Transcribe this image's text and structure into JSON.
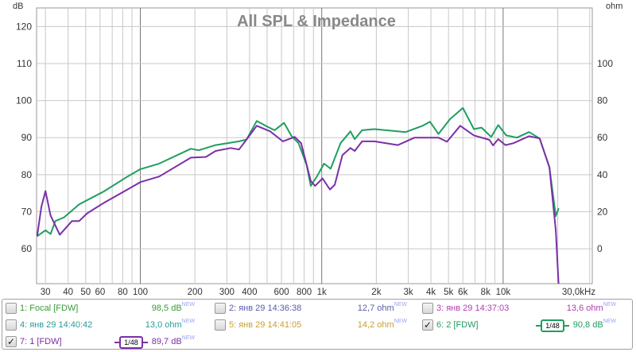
{
  "chart_data": {
    "type": "line",
    "title": "All SPL & Impedance",
    "ylabel": "dB",
    "ylabel_right": "ohm",
    "x_scale": "log",
    "xlim": [
      26.8,
      31000
    ],
    "ylim": [
      50.6,
      125
    ],
    "ylim_right": [
      -19,
      130
    ],
    "grid": true,
    "x_ticks": [
      "30",
      "40",
      "50",
      "60",
      "80",
      "100",
      "200",
      "300",
      "400",
      "600",
      "800",
      "1k",
      "2k",
      "3k",
      "4k",
      "5k",
      "6k",
      "8k",
      "10k",
      "30,0kHz"
    ],
    "x_tick_values": [
      30,
      40,
      50,
      60,
      80,
      100,
      200,
      300,
      400,
      600,
      800,
      1000,
      2000,
      3000,
      4000,
      5000,
      6000,
      8000,
      10000,
      30000
    ],
    "y_ticks": [
      60,
      70,
      80,
      90,
      100,
      110,
      120
    ],
    "y_ticks_right": [
      0,
      20,
      40,
      60,
      80,
      100
    ],
    "series": [
      {
        "name": "6: 2 [FDW]",
        "color": "#1f9e5f",
        "points": [
          [
            27,
            63.4
          ],
          [
            30,
            65
          ],
          [
            32,
            64
          ],
          [
            34,
            67.5
          ],
          [
            38,
            68.5
          ],
          [
            46,
            72
          ],
          [
            63,
            75.5
          ],
          [
            85,
            79.5
          ],
          [
            100,
            81.5
          ],
          [
            127,
            83
          ],
          [
            190,
            87
          ],
          [
            210,
            86.6
          ],
          [
            260,
            88
          ],
          [
            350,
            89
          ],
          [
            385,
            89.5
          ],
          [
            438,
            94.5
          ],
          [
            500,
            93
          ],
          [
            550,
            92
          ],
          [
            620,
            94
          ],
          [
            680,
            90.5
          ],
          [
            745,
            88.5
          ],
          [
            825,
            82.7
          ],
          [
            870,
            77
          ],
          [
            940,
            79.5
          ],
          [
            1030,
            83
          ],
          [
            1120,
            81.6
          ],
          [
            1270,
            88.5
          ],
          [
            1440,
            91.7
          ],
          [
            1520,
            89.6
          ],
          [
            1670,
            92
          ],
          [
            1950,
            92.3
          ],
          [
            2900,
            91.5
          ],
          [
            3600,
            93.2
          ],
          [
            3950,
            94.3
          ],
          [
            4400,
            91
          ],
          [
            5100,
            95
          ],
          [
            6000,
            98
          ],
          [
            6900,
            92.3
          ],
          [
            7600,
            92.7
          ],
          [
            8600,
            90.2
          ],
          [
            9400,
            93.4
          ],
          [
            10400,
            90.6
          ],
          [
            11900,
            90
          ],
          [
            13900,
            91.5
          ],
          [
            15900,
            89.8
          ],
          [
            18000,
            82
          ],
          [
            19500,
            68.8
          ],
          [
            20200,
            71
          ]
        ]
      },
      {
        "name": "7: 1 [FDW]",
        "color": "#7b2fa8",
        "points": [
          [
            27,
            63.4
          ],
          [
            28.5,
            71.4
          ],
          [
            30,
            75.6
          ],
          [
            32,
            69
          ],
          [
            36,
            63.8
          ],
          [
            42,
            67.5
          ],
          [
            46,
            67.5
          ],
          [
            51,
            69.6
          ],
          [
            63,
            72.4
          ],
          [
            85,
            76
          ],
          [
            100,
            78
          ],
          [
            127,
            79.5
          ],
          [
            190,
            84.6
          ],
          [
            230,
            84.8
          ],
          [
            260,
            86.4
          ],
          [
            315,
            87.2
          ],
          [
            350,
            86.8
          ],
          [
            385,
            89.5
          ],
          [
            438,
            93.2
          ],
          [
            520,
            91.7
          ],
          [
            610,
            89
          ],
          [
            710,
            90.2
          ],
          [
            770,
            88.5
          ],
          [
            870,
            78.3
          ],
          [
            920,
            77
          ],
          [
            1010,
            79
          ],
          [
            1110,
            76
          ],
          [
            1180,
            77.3
          ],
          [
            1300,
            85.3
          ],
          [
            1440,
            87.2
          ],
          [
            1520,
            86.4
          ],
          [
            1670,
            89
          ],
          [
            1950,
            89
          ],
          [
            2630,
            88
          ],
          [
            3250,
            90
          ],
          [
            4400,
            90
          ],
          [
            4900,
            88.9
          ],
          [
            5800,
            93.2
          ],
          [
            6900,
            90.6
          ],
          [
            8400,
            89.4
          ],
          [
            8800,
            87.9
          ],
          [
            9400,
            89.6
          ],
          [
            10300,
            88
          ],
          [
            11400,
            88.5
          ],
          [
            13900,
            90.4
          ],
          [
            15900,
            89.8
          ],
          [
            18000,
            82
          ],
          [
            19500,
            65
          ],
          [
            20200,
            50.6
          ]
        ]
      }
    ]
  },
  "legend": [
    {
      "label": "1: Focal [FDW]",
      "value": "98,5 dB",
      "sup": "NEW",
      "color": "#3a9a3a",
      "checked": false
    },
    {
      "label": "2: янв 29 14:36:38",
      "value": "12,7 ohm",
      "sup": "NEW",
      "color": "#5a5ab0",
      "checked": false
    },
    {
      "label": "3: янв 29 14:37:03",
      "value": "13,6 ohm",
      "sup": "NEW",
      "color": "#b03cb0",
      "checked": false
    },
    {
      "label": "4: янв 29 14:40:42",
      "value": "13,0 ohm",
      "sup": "NEW",
      "color": "#2a9a9a",
      "checked": false
    },
    {
      "label": "5: янв 29 14:41:05",
      "value": "14,2 ohm",
      "sup": "NEW",
      "color": "#c8a030",
      "checked": false
    },
    {
      "label": "6: 2 [FDW]",
      "value": "90,8 dB",
      "sup": "NEW",
      "color": "#1f9e5f",
      "checked": true,
      "smoothing": "1/48"
    },
    {
      "label": "7: 1 [FDW]",
      "value": "89,7 dB",
      "sup": "NEW",
      "color": "#7b2fa8",
      "checked": true,
      "smoothing": "1/48"
    }
  ],
  "check_mark": "✓"
}
